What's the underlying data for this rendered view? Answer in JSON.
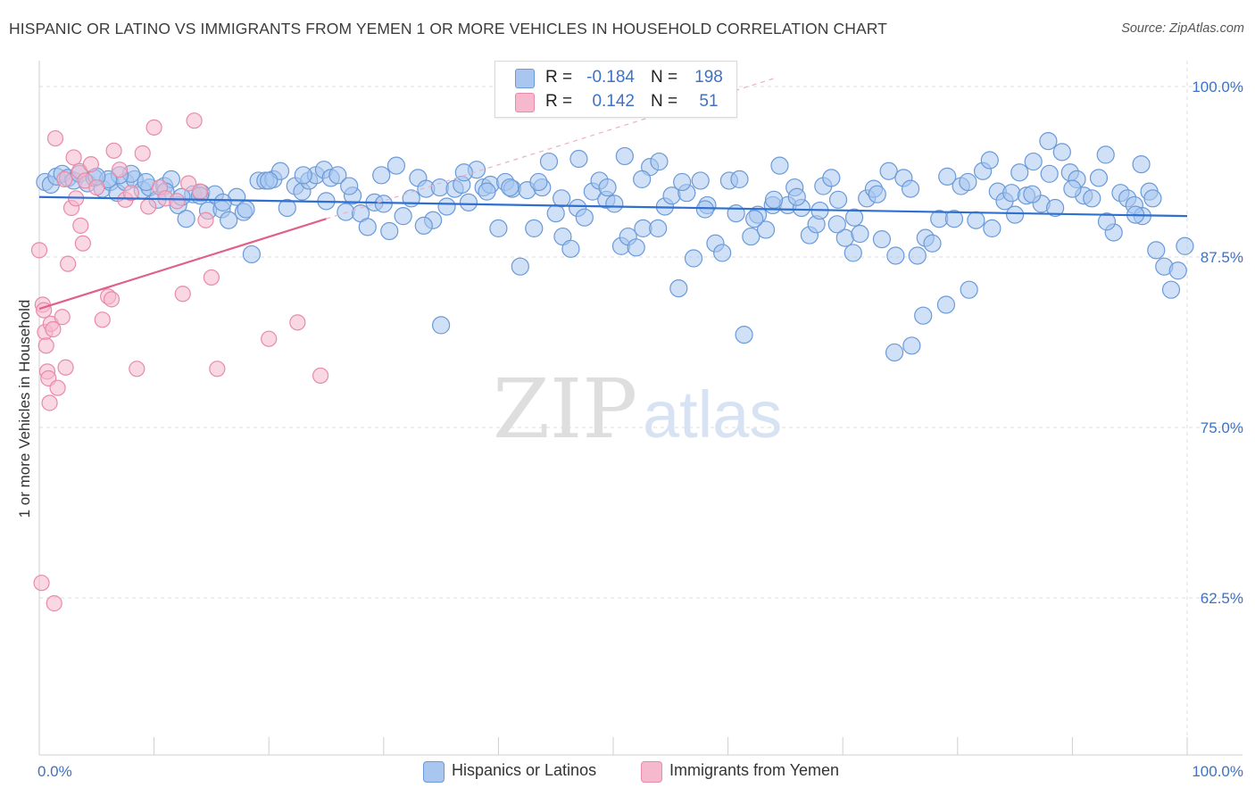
{
  "title": "HISPANIC OR LATINO VS IMMIGRANTS FROM YEMEN 1 OR MORE VEHICLES IN HOUSEHOLD CORRELATION CHART",
  "source": "Source: ZipAtlas.com",
  "watermark": {
    "zip": "ZIP",
    "atlas": "atlas"
  },
  "colors": {
    "blue_fill": "#a8c6f0",
    "blue_stroke": "#6a9ad8",
    "blue_line": "#2e6fd0",
    "pink_fill": "#f6b8cc",
    "pink_stroke": "#e88aa8",
    "pink_line": "#e0608c",
    "axis_text": "#3d72c4",
    "grid": "#dcdcdc"
  },
  "legend": {
    "rows": [
      {
        "r_label": "R =",
        "r_value": "-0.184",
        "n_label": "N =",
        "n_value": "198",
        "swatch": "blue"
      },
      {
        "r_label": "R =",
        "r_value": "0.142",
        "n_label": "N =",
        "n_value": "51",
        "swatch": "pink"
      }
    ]
  },
  "bottom_legend": [
    {
      "label": "Hispanics or Latinos",
      "swatch": "blue"
    },
    {
      "label": "Immigrants from Yemen",
      "swatch": "pink"
    }
  ],
  "chart_data": {
    "type": "scatter",
    "title": "HISPANIC OR LATINO VS IMMIGRANTS FROM YEMEN 1 OR MORE VEHICLES IN HOUSEHOLD CORRELATION CHART",
    "xlabel": "",
    "ylabel": "1 or more Vehicles in Household",
    "xlim": [
      0,
      100
    ],
    "ylim": [
      50,
      101
    ],
    "x_tick_labels": [
      "0.0%",
      "100.0%"
    ],
    "y_ticks": [
      {
        "value": 100,
        "label": "100.0%"
      },
      {
        "value": 87.5,
        "label": "87.5%"
      },
      {
        "value": 75,
        "label": "75.0%"
      },
      {
        "value": 62.5,
        "label": "62.5%"
      }
    ],
    "grid": true,
    "series": [
      {
        "name": "Hispanics or Latinos",
        "color": "blue",
        "trend": {
          "x": [
            0,
            100
          ],
          "y": [
            91.9,
            90.5
          ]
        },
        "points": [
          [
            0.5,
            93.0
          ],
          [
            1.0,
            92.8
          ],
          [
            1.5,
            93.4
          ],
          [
            2.0,
            93.6
          ],
          [
            2.5,
            93.3
          ],
          [
            3.0,
            93.1
          ],
          [
            3.5,
            93.6
          ],
          [
            4.2,
            92.9
          ],
          [
            4.8,
            93.3
          ],
          [
            5.5,
            92.5
          ],
          [
            6.2,
            93.0
          ],
          [
            6.8,
            92.2
          ],
          [
            7.5,
            93.0
          ],
          [
            8.3,
            93.2
          ],
          [
            9.0,
            92.4
          ],
          [
            9.6,
            92.6
          ],
          [
            10.3,
            91.7
          ],
          [
            10.9,
            92.7
          ],
          [
            11.5,
            93.2
          ],
          [
            12.1,
            91.3
          ],
          [
            12.8,
            90.3
          ],
          [
            13.4,
            92.1
          ],
          [
            14.1,
            92.2
          ],
          [
            14.7,
            90.9
          ],
          [
            15.3,
            92.1
          ],
          [
            15.9,
            91.0
          ],
          [
            16.5,
            90.2
          ],
          [
            17.2,
            91.9
          ],
          [
            17.8,
            90.8
          ],
          [
            18.5,
            87.7
          ],
          [
            19.1,
            93.1
          ],
          [
            19.7,
            93.1
          ],
          [
            20.4,
            93.2
          ],
          [
            21.0,
            93.8
          ],
          [
            21.6,
            91.1
          ],
          [
            22.3,
            92.7
          ],
          [
            22.9,
            92.3
          ],
          [
            23.5,
            93.1
          ],
          [
            24.1,
            93.5
          ],
          [
            24.8,
            93.9
          ],
          [
            25.4,
            93.3
          ],
          [
            26.0,
            93.5
          ],
          [
            26.7,
            90.8
          ],
          [
            27.3,
            92.0
          ],
          [
            28.0,
            90.7
          ],
          [
            28.6,
            89.7
          ],
          [
            29.2,
            91.5
          ],
          [
            29.8,
            93.5
          ],
          [
            30.5,
            89.4
          ],
          [
            31.1,
            94.2
          ],
          [
            31.7,
            90.5
          ],
          [
            32.4,
            91.8
          ],
          [
            33.0,
            93.3
          ],
          [
            33.7,
            92.5
          ],
          [
            34.3,
            90.2
          ],
          [
            34.9,
            92.6
          ],
          [
            35.5,
            91.2
          ],
          [
            36.2,
            92.5
          ],
          [
            36.8,
            92.8
          ],
          [
            37.4,
            91.5
          ],
          [
            38.1,
            93.9
          ],
          [
            38.7,
            92.6
          ],
          [
            39.3,
            92.8
          ],
          [
            40.0,
            89.6
          ],
          [
            40.6,
            93.0
          ],
          [
            41.2,
            92.5
          ],
          [
            41.9,
            86.8
          ],
          [
            42.5,
            92.4
          ],
          [
            43.1,
            89.6
          ],
          [
            43.8,
            92.6
          ],
          [
            44.4,
            94.5
          ],
          [
            45.0,
            90.7
          ],
          [
            45.6,
            89.0
          ],
          [
            46.3,
            88.1
          ],
          [
            46.9,
            91.1
          ],
          [
            47.5,
            90.4
          ],
          [
            48.2,
            92.3
          ],
          [
            48.8,
            93.1
          ],
          [
            49.4,
            91.7
          ],
          [
            50.1,
            91.4
          ],
          [
            50.7,
            88.3
          ],
          [
            51.3,
            89.0
          ],
          [
            52.0,
            88.2
          ],
          [
            52.6,
            89.6
          ],
          [
            53.2,
            94.1
          ],
          [
            53.9,
            89.6
          ],
          [
            54.5,
            91.2
          ],
          [
            55.1,
            92.0
          ],
          [
            55.7,
            85.2
          ],
          [
            56.4,
            92.2
          ],
          [
            57.0,
            87.4
          ],
          [
            57.6,
            93.1
          ],
          [
            58.2,
            91.3
          ],
          [
            58.9,
            88.5
          ],
          [
            59.5,
            87.8
          ],
          [
            60.1,
            93.1
          ],
          [
            60.7,
            90.7
          ],
          [
            61.4,
            81.8
          ],
          [
            62.0,
            89.0
          ],
          [
            62.6,
            90.6
          ],
          [
            63.3,
            89.5
          ],
          [
            63.9,
            91.3
          ],
          [
            64.5,
            94.2
          ],
          [
            65.2,
            91.3
          ],
          [
            65.8,
            92.6
          ],
          [
            66.4,
            91.1
          ],
          [
            67.1,
            89.1
          ],
          [
            67.7,
            89.9
          ],
          [
            68.3,
            92.7
          ],
          [
            69.0,
            93.3
          ],
          [
            69.6,
            91.7
          ],
          [
            70.2,
            88.9
          ],
          [
            70.9,
            87.8
          ],
          [
            71.5,
            89.2
          ],
          [
            72.1,
            91.8
          ],
          [
            72.7,
            92.5
          ],
          [
            73.4,
            88.8
          ],
          [
            74.0,
            93.8
          ],
          [
            74.6,
            87.6
          ],
          [
            75.3,
            93.3
          ],
          [
            75.9,
            92.5
          ],
          [
            76.5,
            87.6
          ],
          [
            77.2,
            88.9
          ],
          [
            77.8,
            88.5
          ],
          [
            78.4,
            90.3
          ],
          [
            79.1,
            93.4
          ],
          [
            79.7,
            90.3
          ],
          [
            80.3,
            92.7
          ],
          [
            80.9,
            93.0
          ],
          [
            81.6,
            90.2
          ],
          [
            82.2,
            93.8
          ],
          [
            82.8,
            94.6
          ],
          [
            83.5,
            92.3
          ],
          [
            84.1,
            91.6
          ],
          [
            84.7,
            92.2
          ],
          [
            85.4,
            93.7
          ],
          [
            86.0,
            92.0
          ],
          [
            86.6,
            94.5
          ],
          [
            87.3,
            91.4
          ],
          [
            87.9,
            96.0
          ],
          [
            88.5,
            91.1
          ],
          [
            89.1,
            95.2
          ],
          [
            89.8,
            93.7
          ],
          [
            90.4,
            93.2
          ],
          [
            91.0,
            92.0
          ],
          [
            91.7,
            91.8
          ],
          [
            92.3,
            93.3
          ],
          [
            92.9,
            95.0
          ],
          [
            93.6,
            89.3
          ],
          [
            94.2,
            92.2
          ],
          [
            94.8,
            91.8
          ],
          [
            95.4,
            91.3
          ],
          [
            96.1,
            90.5
          ],
          [
            96.7,
            92.3
          ],
          [
            97.3,
            88.0
          ],
          [
            98.0,
            86.8
          ],
          [
            98.6,
            85.1
          ],
          [
            99.2,
            86.5
          ],
          [
            99.8,
            88.3
          ],
          [
            96.0,
            94.3
          ],
          [
            97.0,
            91.8
          ],
          [
            95.5,
            90.6
          ],
          [
            93.0,
            90.1
          ],
          [
            90.0,
            92.5
          ],
          [
            88.0,
            93.6
          ],
          [
            86.5,
            92.1
          ],
          [
            85.0,
            90.6
          ],
          [
            83.0,
            89.6
          ],
          [
            81.0,
            85.1
          ],
          [
            79.0,
            84.0
          ],
          [
            77.0,
            83.2
          ],
          [
            76.0,
            81.0
          ],
          [
            74.5,
            80.5
          ],
          [
            73.0,
            92.1
          ],
          [
            71.0,
            90.4
          ],
          [
            69.5,
            89.9
          ],
          [
            68.0,
            90.9
          ],
          [
            66.0,
            91.9
          ],
          [
            64.0,
            91.7
          ],
          [
            62.3,
            90.3
          ],
          [
            61.0,
            93.2
          ],
          [
            58.0,
            91.0
          ],
          [
            56.0,
            93.0
          ],
          [
            54.0,
            94.5
          ],
          [
            52.5,
            93.2
          ],
          [
            51.0,
            94.9
          ],
          [
            49.5,
            92.6
          ],
          [
            47.0,
            94.7
          ],
          [
            45.5,
            91.8
          ],
          [
            43.5,
            93.0
          ],
          [
            41.0,
            92.6
          ],
          [
            39.0,
            92.3
          ],
          [
            37.0,
            93.7
          ],
          [
            35.0,
            82.5
          ],
          [
            33.5,
            89.8
          ],
          [
            30.0,
            91.4
          ],
          [
            27.0,
            92.7
          ],
          [
            25.0,
            91.6
          ],
          [
            23.0,
            93.5
          ],
          [
            20.0,
            93.1
          ],
          [
            18.0,
            91.0
          ],
          [
            16.0,
            91.5
          ],
          [
            14.0,
            92.0
          ],
          [
            12.4,
            91.9
          ],
          [
            11.0,
            92.3
          ],
          [
            9.3,
            93.0
          ],
          [
            8.0,
            93.6
          ],
          [
            7.0,
            93.5
          ],
          [
            6.0,
            93.2
          ],
          [
            5.0,
            93.4
          ]
        ]
      },
      {
        "name": "Immigrants from Yemen",
        "color": "pink",
        "trend": {
          "x": [
            0,
            25
          ],
          "y": [
            83.7,
            90.3
          ]
        },
        "points": [
          [
            0.0,
            88.0
          ],
          [
            0.3,
            84.0
          ],
          [
            0.4,
            83.6
          ],
          [
            0.5,
            82.0
          ],
          [
            0.6,
            81.0
          ],
          [
            0.7,
            79.1
          ],
          [
            0.8,
            78.6
          ],
          [
            0.9,
            76.8
          ],
          [
            1.0,
            82.6
          ],
          [
            1.2,
            82.2
          ],
          [
            1.4,
            96.2
          ],
          [
            1.6,
            77.9
          ],
          [
            2.0,
            83.1
          ],
          [
            2.2,
            93.2
          ],
          [
            2.3,
            79.4
          ],
          [
            2.5,
            87.0
          ],
          [
            2.8,
            91.1
          ],
          [
            3.0,
            94.8
          ],
          [
            3.2,
            91.8
          ],
          [
            3.5,
            93.8
          ],
          [
            3.6,
            89.8
          ],
          [
            3.8,
            88.5
          ],
          [
            4.0,
            93.1
          ],
          [
            4.5,
            94.3
          ],
          [
            5.0,
            92.6
          ],
          [
            5.5,
            82.9
          ],
          [
            6.0,
            84.6
          ],
          [
            6.3,
            84.4
          ],
          [
            6.5,
            95.3
          ],
          [
            7.0,
            93.9
          ],
          [
            7.5,
            91.7
          ],
          [
            8.0,
            92.2
          ],
          [
            8.5,
            79.3
          ],
          [
            9.0,
            95.1
          ],
          [
            9.5,
            91.2
          ],
          [
            10.0,
            97.0
          ],
          [
            10.5,
            92.6
          ],
          [
            11.0,
            91.8
          ],
          [
            12.0,
            91.6
          ],
          [
            12.5,
            84.8
          ],
          [
            13.0,
            92.9
          ],
          [
            13.5,
            97.5
          ],
          [
            14.0,
            92.3
          ],
          [
            14.5,
            90.2
          ],
          [
            15.0,
            86.0
          ],
          [
            15.5,
            79.3
          ],
          [
            20.0,
            81.5
          ],
          [
            22.5,
            82.7
          ],
          [
            24.5,
            78.8
          ],
          [
            0.2,
            63.6
          ],
          [
            1.3,
            62.1
          ]
        ]
      }
    ]
  }
}
